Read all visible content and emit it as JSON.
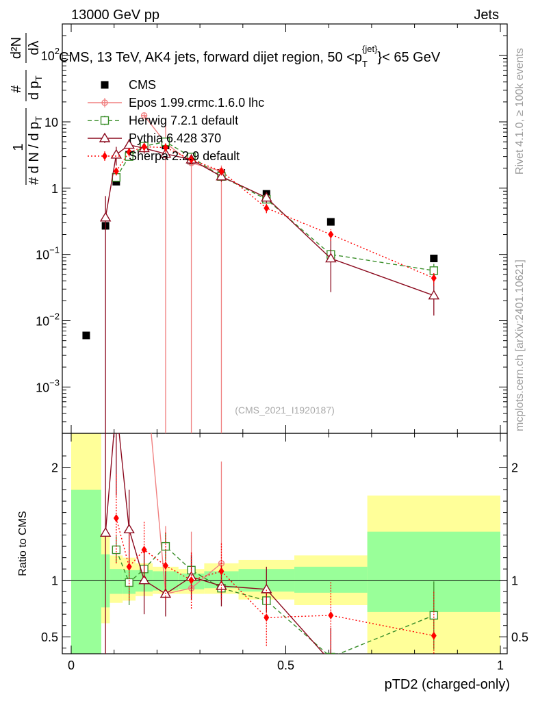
{
  "header": {
    "left": "13000 GeV pp",
    "right": "Jets"
  },
  "side_text": {
    "top": "Rivet 4.1.0, ≥ 100k events",
    "bottom": "mcplots.cern.ch [arXiv:2401.10621]"
  },
  "chart_data": {
    "type": "scatter",
    "title": "CMS, 13 TeV, AK4 jets, forward dijet region, 50 <p_T^{jet}< 65 GeV",
    "title_parts": {
      "main": "CMS, 13 TeV, AK4 jets, forward dijet region, 50 <p",
      "sub": "T",
      "sup": "{jet}",
      "tail": "}< 65 GeV"
    },
    "xlabel": "pTD2 (charged-only)",
    "ylabel_top": "# d N / d p_T dλ",
    "ylabel_top_parts": {
      "num": "1",
      "den": "# d N / d p",
      "den_sub": "T",
      "frac_num": "#",
      "frac_den": "d p",
      "frac_den_sub": "T",
      "dd_num": "d²N",
      "dd_den": "dλ"
    },
    "ylabel_ratio": "Ratio to CMS",
    "watermark": "(CMS_2021_I1920187)",
    "xlim": [
      -0.02,
      1.0
    ],
    "ylim_log": [
      0.0002,
      300
    ],
    "ratio_ylim": [
      0.35,
      2.3
    ],
    "x_ticks": [
      0,
      0.5,
      1
    ],
    "x_tick_labels": [
      "0",
      "0.5",
      "1"
    ],
    "y_ticks": [
      0.001,
      0.01,
      0.1,
      1,
      10,
      100
    ],
    "y_tick_labels": [
      {
        "base": "10",
        "exp": "−3"
      },
      {
        "base": "10",
        "exp": "−2"
      },
      {
        "base": "10",
        "exp": "−1"
      },
      {
        "base": "1",
        "exp": ""
      },
      {
        "base": "10",
        "exp": ""
      },
      {
        "base": "10",
        "exp": "2"
      }
    ],
    "ratio_ticks": [
      0.5,
      1,
      2
    ],
    "ratio_tick_labels": [
      "0.5",
      "1",
      "2"
    ],
    "bins": [
      0,
      0.07,
      0.09,
      0.12,
      0.15,
      0.19,
      0.25,
      0.31,
      0.39,
      0.52,
      0.69,
      1.0
    ],
    "ratio_band_inner": [
      [
        0.0,
        1.8
      ],
      [
        0.76,
        1.23
      ],
      [
        0.88,
        1.1
      ],
      [
        0.88,
        1.09
      ],
      [
        0.9,
        1.09
      ],
      [
        0.91,
        1.08
      ],
      [
        0.92,
        1.06
      ],
      [
        0.93,
        1.08
      ],
      [
        0.9,
        1.1
      ],
      [
        0.89,
        1.12
      ],
      [
        0.72,
        1.43
      ]
    ],
    "ratio_band_outer": [
      [
        0.0,
        2.35
      ],
      [
        0.62,
        1.4
      ],
      [
        0.8,
        1.22
      ],
      [
        0.82,
        1.2
      ],
      [
        0.86,
        1.15
      ],
      [
        0.88,
        1.12
      ],
      [
        0.88,
        1.1
      ],
      [
        0.88,
        1.15
      ],
      [
        0.83,
        1.18
      ],
      [
        0.78,
        1.22
      ],
      [
        0.25,
        1.75
      ]
    ],
    "legend": [
      "CMS",
      "Epos 1.99.crmc.1.6.0 lhc",
      "Herwig 7.2.1 default",
      "Pythia 6.428 370",
      "Sherpa 2.2.9 default"
    ],
    "series": [
      {
        "name": "CMS",
        "color": "#000000",
        "marker": "square-filled",
        "line": "none",
        "x": [
          0.035,
          0.08,
          0.105,
          0.135,
          0.17,
          0.22,
          0.28,
          0.35,
          0.455,
          0.605,
          0.845
        ],
        "y": [
          0.006,
          0.27,
          1.25,
          3.2,
          4.0,
          4.4,
          2.6,
          1.7,
          0.82,
          0.31,
          0.087
        ]
      },
      {
        "name": "Epos 1.99.crmc.1.6.0 lhc",
        "color": "#f08080",
        "marker": "plus-circle",
        "line": "solid",
        "x": [
          0.17,
          0.22,
          0.28,
          0.35
        ],
        "y": [
          12.5,
          4.8,
          2.4,
          1.8
        ],
        "err_lo": [
          0,
          4.8,
          2.4,
          1.8
        ],
        "err_hi": [
          0,
          6.0,
          0.6,
          0.4
        ],
        "ratio_x": [
          0.17,
          0.22,
          0.28,
          0.35
        ],
        "ratio_y": [
          3.0,
          0.88,
          0.93,
          1.15
        ],
        "ratio_err_lo": [
          0,
          0,
          0,
          0
        ],
        "ratio_err_hi": [
          0,
          0.6,
          0.5,
          0.9
        ]
      },
      {
        "name": "Herwig 7.2.1 default",
        "color": "#3a8e2a",
        "marker": "square-open",
        "line": "dashed",
        "x": [
          0.105,
          0.135,
          0.17,
          0.22,
          0.28,
          0.35,
          0.455,
          0.605,
          0.845
        ],
        "y": [
          1.45,
          3.0,
          4.3,
          5.0,
          2.95,
          1.5,
          0.68,
          0.1,
          0.057
        ],
        "err": [
          0.2,
          0.35,
          0.4,
          0.5,
          0.3,
          0.15,
          0.07,
          0.02,
          0.015
        ],
        "ratio_x": [
          0.105,
          0.135,
          0.17,
          0.22,
          0.28,
          0.35,
          0.455,
          0.605,
          0.845
        ],
        "ratio_y": [
          1.27,
          0.98,
          1.1,
          1.3,
          1.09,
          0.93,
          0.82,
          0.32,
          0.69
        ],
        "ratio_err": [
          0.12,
          0.2,
          0.15,
          0.12,
          0.12,
          0.1,
          0.1,
          0.08,
          0.3
        ]
      },
      {
        "name": "Pythia 6.428 370",
        "color": "#8b0a1e",
        "marker": "triangle-open",
        "line": "solid",
        "x": [
          0.08,
          0.105,
          0.135,
          0.17,
          0.22,
          0.28,
          0.35,
          0.455,
          0.605,
          0.845
        ],
        "y": [
          0.36,
          3.2,
          4.5,
          4.0,
          3.3,
          2.7,
          1.5,
          0.72,
          0.087,
          0.024
        ],
        "err_lo": [
          0.36,
          1.0,
          1.0,
          0.7,
          0.5,
          0.4,
          0.25,
          0.12,
          0.06,
          0.012
        ],
        "err_hi": [
          0.4,
          1.0,
          1.0,
          0.7,
          0.5,
          0.4,
          0.25,
          0.12,
          0.09,
          0.02
        ],
        "ratio_x": [
          0.08,
          0.105,
          0.135,
          0.17,
          0.22,
          0.28,
          0.35,
          0.455,
          0.605
        ],
        "ratio_y": [
          1.42,
          2.55,
          1.45,
          1.0,
          0.88,
          1.03,
          0.95,
          0.92,
          0.28
        ],
        "ratio_err": [
          1.1,
          0.8,
          0.35,
          0.3,
          0.2,
          0.2,
          0.18,
          0.2,
          0.3
        ]
      },
      {
        "name": "Sherpa 2.2.9 default",
        "color": "#ff0000",
        "marker": "diamond-filled",
        "line": "dotted",
        "x": [
          0.105,
          0.135,
          0.17,
          0.22,
          0.28,
          0.35,
          0.455,
          0.605,
          0.845
        ],
        "y": [
          1.8,
          3.5,
          4.2,
          4.1,
          2.7,
          1.8,
          0.5,
          0.2,
          0.044
        ],
        "err": [
          0.25,
          0.5,
          0.6,
          0.7,
          0.4,
          0.25,
          0.08,
          0.04,
          0.01
        ],
        "ratio_x": [
          0.105,
          0.135,
          0.17,
          0.22,
          0.28,
          0.35,
          0.455,
          0.605,
          0.845
        ],
        "ratio_y": [
          1.55,
          1.12,
          1.27,
          1.13,
          1.0,
          1.08,
          0.67,
          0.69,
          0.51
        ],
        "ratio_err": [
          0.4,
          0.3,
          0.25,
          0.3,
          0.25,
          0.25,
          0.25,
          0.3,
          0.4
        ]
      }
    ]
  }
}
